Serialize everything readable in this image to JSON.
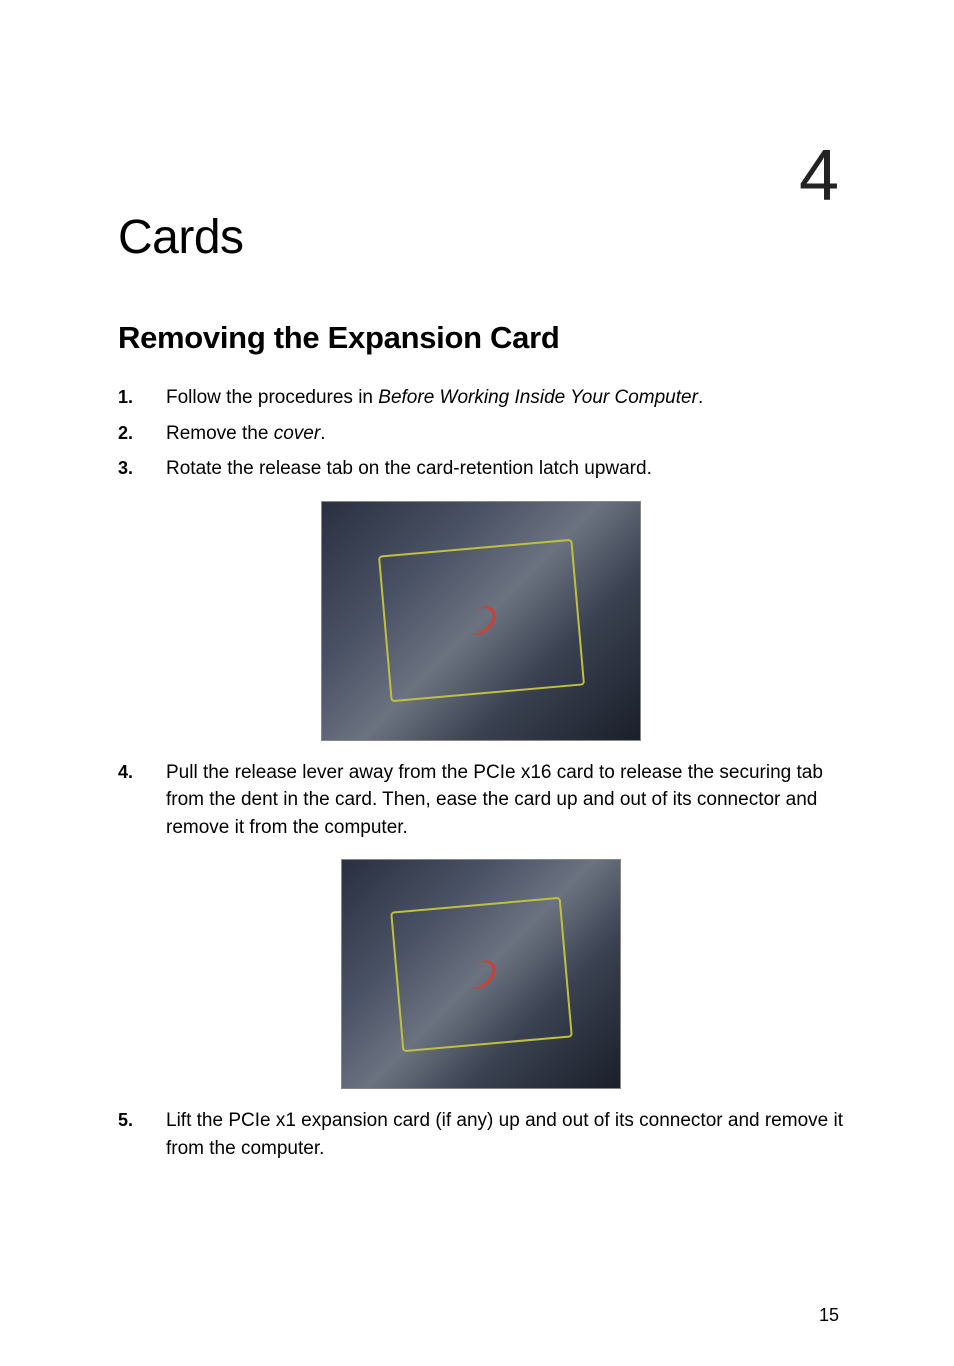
{
  "chapter": {
    "number": "4",
    "title": "Cards"
  },
  "section": {
    "title": "Removing the Expansion Card"
  },
  "steps": [
    {
      "number": "1.",
      "text_prefix": "Follow the procedures in ",
      "text_italic": "Before Working Inside Your Computer",
      "text_suffix": "."
    },
    {
      "number": "2.",
      "text_prefix": "Remove the ",
      "text_italic": "cover",
      "text_suffix": "."
    },
    {
      "number": "3.",
      "text_prefix": "Rotate the release tab on the card-retention latch upward.",
      "text_italic": "",
      "text_suffix": ""
    },
    {
      "number": "4.",
      "text_prefix": "Pull the release lever away from the PCIe x16 card to release the securing tab from the dent in the card. Then, ease the card up and out of its connector and remove it from the computer.",
      "text_italic": "",
      "text_suffix": ""
    },
    {
      "number": "5.",
      "text_prefix": "Lift the PCIe x1 expansion card (if any) up and out of its connector and remove it from the computer.",
      "text_italic": "",
      "text_suffix": ""
    }
  ],
  "images": {
    "img1_alt": "Computer interior showing card retention latch",
    "img2_alt": "Computer interior showing PCIe card removal"
  },
  "page_number": "15",
  "styling": {
    "body_width": 954,
    "body_height": 1366,
    "background_color": "#ffffff",
    "text_color": "#000000",
    "font_family": "Arial, Helvetica, sans-serif",
    "chapter_number_fontsize": 72,
    "chapter_title_fontsize": 48,
    "section_title_fontsize": 31,
    "body_text_fontsize": 19,
    "list_number_fontsize": 18,
    "page_number_fontsize": 18
  }
}
